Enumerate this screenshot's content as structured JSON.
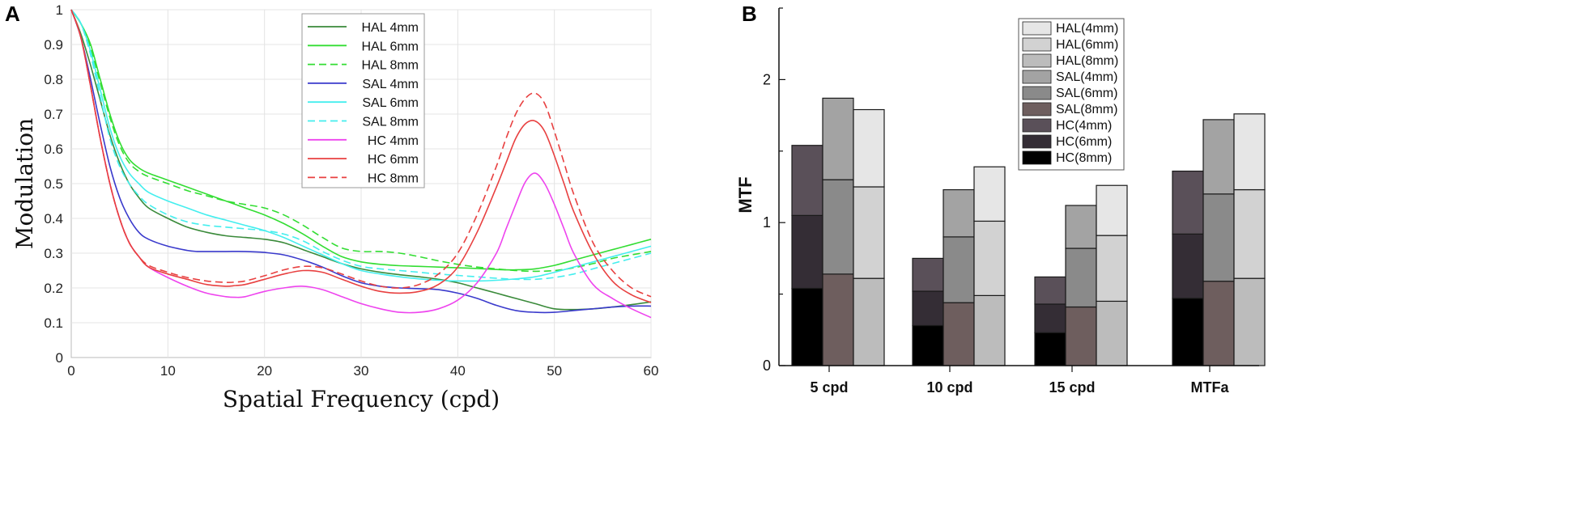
{
  "panel_labels": {
    "a": "A",
    "b": "B"
  },
  "chart_data": [
    {
      "id": "A",
      "type": "line",
      "xlabel": "Spatial Frequency (cpd)",
      "ylabel": "Modulation",
      "xlim": [
        0,
        60
      ],
      "ylim": [
        0,
        1
      ],
      "xticks": [
        0,
        10,
        20,
        30,
        40,
        50,
        60
      ],
      "yticks": [
        0,
        0.1,
        0.2,
        0.3,
        0.4,
        0.5,
        0.6,
        0.7,
        0.8,
        0.9,
        1
      ],
      "grid": true,
      "legend_position": "top-center",
      "series": [
        {
          "name": "HAL 4mm",
          "color": "#3a8a3a",
          "dash": "solid",
          "x": [
            0,
            1,
            2,
            3,
            4,
            5,
            6,
            7,
            8,
            10,
            12,
            14,
            16,
            18,
            20,
            22,
            24,
            26,
            28,
            30,
            32,
            34,
            36,
            38,
            40,
            42,
            44,
            46,
            48,
            50,
            52,
            54,
            56,
            58,
            60
          ],
          "y": [
            1,
            0.93,
            0.84,
            0.74,
            0.64,
            0.56,
            0.5,
            0.46,
            0.43,
            0.4,
            0.375,
            0.36,
            0.35,
            0.345,
            0.34,
            0.33,
            0.31,
            0.29,
            0.27,
            0.255,
            0.245,
            0.238,
            0.232,
            0.225,
            0.215,
            0.2,
            0.185,
            0.17,
            0.155,
            0.14,
            0.138,
            0.14,
            0.145,
            0.152,
            0.16
          ]
        },
        {
          "name": "HAL 6mm",
          "color": "#33dd33",
          "dash": "solid",
          "x": [
            0,
            1,
            2,
            3,
            4,
            5,
            6,
            7,
            8,
            10,
            12,
            14,
            16,
            18,
            20,
            22,
            24,
            26,
            28,
            30,
            32,
            34,
            36,
            38,
            40,
            42,
            44,
            46,
            48,
            50,
            52,
            54,
            56,
            58,
            60
          ],
          "y": [
            1,
            0.96,
            0.9,
            0.8,
            0.7,
            0.62,
            0.57,
            0.545,
            0.53,
            0.51,
            0.49,
            0.47,
            0.45,
            0.43,
            0.41,
            0.385,
            0.355,
            0.32,
            0.29,
            0.275,
            0.268,
            0.264,
            0.262,
            0.26,
            0.258,
            0.256,
            0.253,
            0.252,
            0.255,
            0.265,
            0.28,
            0.295,
            0.31,
            0.325,
            0.34
          ]
        },
        {
          "name": "HAL 8mm",
          "color": "#33dd33",
          "dash": "dashed",
          "x": [
            0,
            1,
            2,
            3,
            4,
            5,
            6,
            7,
            8,
            10,
            12,
            14,
            16,
            18,
            20,
            22,
            24,
            26,
            28,
            30,
            32,
            34,
            36,
            38,
            40,
            42,
            44,
            46,
            48,
            50,
            52,
            54,
            56,
            58,
            60
          ],
          "y": [
            1,
            0.96,
            0.89,
            0.79,
            0.69,
            0.61,
            0.56,
            0.535,
            0.52,
            0.5,
            0.48,
            0.465,
            0.45,
            0.44,
            0.43,
            0.41,
            0.38,
            0.345,
            0.315,
            0.305,
            0.305,
            0.3,
            0.29,
            0.278,
            0.268,
            0.26,
            0.255,
            0.25,
            0.248,
            0.25,
            0.258,
            0.27,
            0.285,
            0.295,
            0.305
          ]
        },
        {
          "name": "SAL 4mm",
          "color": "#3a3acc",
          "dash": "solid",
          "x": [
            0,
            1,
            2,
            3,
            4,
            5,
            6,
            7,
            8,
            10,
            12,
            13,
            14,
            16,
            18,
            20,
            22,
            24,
            26,
            28,
            30,
            32,
            34,
            36,
            38,
            40,
            42,
            44,
            46,
            48,
            50,
            52,
            54,
            56,
            58,
            60
          ],
          "y": [
            1,
            0.92,
            0.8,
            0.67,
            0.55,
            0.46,
            0.4,
            0.36,
            0.34,
            0.32,
            0.308,
            0.305,
            0.305,
            0.305,
            0.305,
            0.302,
            0.295,
            0.28,
            0.26,
            0.235,
            0.215,
            0.205,
            0.2,
            0.198,
            0.195,
            0.185,
            0.17,
            0.15,
            0.135,
            0.13,
            0.13,
            0.135,
            0.14,
            0.145,
            0.148,
            0.148
          ]
        },
        {
          "name": "SAL 6mm",
          "color": "#44eeee",
          "dash": "solid",
          "x": [
            0,
            1,
            2,
            3,
            4,
            5,
            6,
            7,
            8,
            10,
            12,
            14,
            16,
            18,
            20,
            22,
            24,
            26,
            28,
            30,
            32,
            34,
            36,
            38,
            40,
            42,
            44,
            46,
            48,
            50,
            52,
            54,
            56,
            58,
            60
          ],
          "y": [
            1,
            0.96,
            0.88,
            0.77,
            0.66,
            0.58,
            0.53,
            0.5,
            0.475,
            0.45,
            0.43,
            0.41,
            0.395,
            0.38,
            0.365,
            0.345,
            0.32,
            0.295,
            0.27,
            0.25,
            0.24,
            0.232,
            0.226,
            0.222,
            0.22,
            0.22,
            0.222,
            0.226,
            0.232,
            0.245,
            0.26,
            0.275,
            0.29,
            0.305,
            0.32
          ]
        },
        {
          "name": "SAL 8mm",
          "color": "#44eeee",
          "dash": "dashed",
          "x": [
            0,
            1,
            2,
            3,
            4,
            5,
            6,
            7,
            8,
            10,
            12,
            14,
            16,
            18,
            20,
            22,
            24,
            26,
            28,
            30,
            32,
            34,
            36,
            38,
            40,
            42,
            44,
            46,
            48,
            50,
            52,
            54,
            56,
            58,
            60
          ],
          "y": [
            1,
            0.96,
            0.87,
            0.75,
            0.63,
            0.55,
            0.5,
            0.465,
            0.44,
            0.41,
            0.39,
            0.38,
            0.375,
            0.37,
            0.365,
            0.355,
            0.335,
            0.305,
            0.28,
            0.262,
            0.255,
            0.25,
            0.245,
            0.24,
            0.236,
            0.232,
            0.228,
            0.225,
            0.225,
            0.23,
            0.24,
            0.255,
            0.27,
            0.285,
            0.3
          ]
        },
        {
          "name": "HC 4mm",
          "color": "#ee44ee",
          "dash": "solid",
          "x": [
            0,
            1,
            2,
            3,
            4,
            5,
            6,
            7,
            8,
            10,
            12,
            14,
            16,
            17,
            18,
            20,
            22,
            24,
            26,
            28,
            30,
            32,
            34,
            36,
            38,
            40,
            42,
            44,
            45,
            46,
            47,
            48,
            49,
            50,
            51,
            52,
            54,
            56,
            58,
            60
          ],
          "y": [
            1,
            0.92,
            0.78,
            0.63,
            0.5,
            0.4,
            0.33,
            0.29,
            0.26,
            0.23,
            0.205,
            0.185,
            0.175,
            0.173,
            0.175,
            0.19,
            0.2,
            0.205,
            0.195,
            0.175,
            0.155,
            0.14,
            0.13,
            0.13,
            0.14,
            0.165,
            0.215,
            0.3,
            0.37,
            0.44,
            0.505,
            0.53,
            0.5,
            0.44,
            0.37,
            0.3,
            0.21,
            0.17,
            0.14,
            0.115
          ]
        },
        {
          "name": "HC 6mm",
          "color": "#e84040",
          "dash": "solid",
          "x": [
            0,
            1,
            2,
            3,
            4,
            5,
            6,
            7,
            8,
            10,
            12,
            14,
            16,
            17,
            18,
            20,
            22,
            24,
            26,
            28,
            30,
            32,
            34,
            36,
            38,
            40,
            42,
            44,
            45,
            46,
            47,
            48,
            49,
            50,
            51,
            52,
            54,
            56,
            58,
            60
          ],
          "y": [
            1,
            0.92,
            0.78,
            0.63,
            0.5,
            0.4,
            0.33,
            0.29,
            0.26,
            0.24,
            0.225,
            0.21,
            0.205,
            0.207,
            0.21,
            0.225,
            0.24,
            0.25,
            0.245,
            0.225,
            0.205,
            0.19,
            0.185,
            0.19,
            0.21,
            0.26,
            0.36,
            0.49,
            0.56,
            0.63,
            0.672,
            0.68,
            0.65,
            0.58,
            0.5,
            0.42,
            0.3,
            0.22,
            0.18,
            0.158
          ]
        },
        {
          "name": "HC 8mm",
          "color": "#e84040",
          "dash": "dashed",
          "x": [
            0,
            1,
            2,
            3,
            4,
            5,
            6,
            7,
            8,
            10,
            12,
            14,
            16,
            17,
            18,
            20,
            22,
            24,
            26,
            28,
            30,
            32,
            34,
            36,
            38,
            40,
            42,
            44,
            45,
            46,
            47,
            48,
            49,
            50,
            51,
            52,
            54,
            56,
            58,
            60
          ],
          "y": [
            1,
            0.92,
            0.78,
            0.63,
            0.5,
            0.4,
            0.33,
            0.29,
            0.265,
            0.245,
            0.23,
            0.22,
            0.216,
            0.217,
            0.22,
            0.235,
            0.252,
            0.262,
            0.258,
            0.24,
            0.22,
            0.205,
            0.2,
            0.21,
            0.24,
            0.3,
            0.41,
            0.55,
            0.63,
            0.7,
            0.745,
            0.76,
            0.73,
            0.65,
            0.56,
            0.47,
            0.33,
            0.25,
            0.2,
            0.175
          ]
        }
      ]
    },
    {
      "id": "B",
      "type": "bar",
      "stacked": true,
      "ylabel": "MTF",
      "ylim": [
        0,
        2.5
      ],
      "yticks": [
        0,
        1,
        2
      ],
      "categories": [
        "5 cpd",
        "10 cpd",
        "15 cpd",
        "MTFa"
      ],
      "groups": [
        "HC",
        "SAL",
        "HAL"
      ],
      "legend_position": "top-center",
      "legend": [
        "HAL(4mm)",
        "HAL(6mm)",
        "HAL(8mm)",
        "SAL(4mm)",
        "SAL(6mm)",
        "SAL(8mm)",
        "HC(4mm)",
        "HC(6mm)",
        "HC(8mm)"
      ],
      "colors": {
        "HAL(4mm)": "#e6e6e6",
        "HAL(6mm)": "#d2d2d2",
        "HAL(8mm)": "#bcbcbc",
        "SAL(4mm)": "#a3a3a3",
        "SAL(6mm)": "#8a8a8a",
        "SAL(8mm)": "#6e5e5e",
        "HC(4mm)": "#5a5059",
        "HC(6mm)": "#342d35",
        "HC(8mm)": "#000000"
      },
      "stacks": [
        {
          "category": "5 cpd",
          "group": "HC",
          "segments": [
            {
              "name": "HC(8mm)",
              "value": 0.54
            },
            {
              "name": "HC(6mm)",
              "value": 0.51
            },
            {
              "name": "HC(4mm)",
              "value": 0.49
            }
          ]
        },
        {
          "category": "5 cpd",
          "group": "SAL",
          "segments": [
            {
              "name": "SAL(8mm)",
              "value": 0.64
            },
            {
              "name": "SAL(6mm)",
              "value": 0.66
            },
            {
              "name": "SAL(4mm)",
              "value": 0.57
            }
          ]
        },
        {
          "category": "5 cpd",
          "group": "HAL",
          "segments": [
            {
              "name": "HAL(8mm)",
              "value": 0.61
            },
            {
              "name": "HAL(6mm)",
              "value": 0.64
            },
            {
              "name": "HAL(4mm)",
              "value": 0.54
            }
          ]
        },
        {
          "category": "10 cpd",
          "group": "HC",
          "segments": [
            {
              "name": "HC(8mm)",
              "value": 0.28
            },
            {
              "name": "HC(6mm)",
              "value": 0.24
            },
            {
              "name": "HC(4mm)",
              "value": 0.23
            }
          ]
        },
        {
          "category": "10 cpd",
          "group": "SAL",
          "segments": [
            {
              "name": "SAL(8mm)",
              "value": 0.44
            },
            {
              "name": "SAL(6mm)",
              "value": 0.46
            },
            {
              "name": "SAL(4mm)",
              "value": 0.33
            }
          ]
        },
        {
          "category": "10 cpd",
          "group": "HAL",
          "segments": [
            {
              "name": "HAL(8mm)",
              "value": 0.49
            },
            {
              "name": "HAL(6mm)",
              "value": 0.52
            },
            {
              "name": "HAL(4mm)",
              "value": 0.38
            }
          ]
        },
        {
          "category": "15 cpd",
          "group": "HC",
          "segments": [
            {
              "name": "HC(8mm)",
              "value": 0.23
            },
            {
              "name": "HC(6mm)",
              "value": 0.2
            },
            {
              "name": "HC(4mm)",
              "value": 0.19
            }
          ]
        },
        {
          "category": "15 cpd",
          "group": "SAL",
          "segments": [
            {
              "name": "SAL(8mm)",
              "value": 0.41
            },
            {
              "name": "SAL(6mm)",
              "value": 0.41
            },
            {
              "name": "SAL(4mm)",
              "value": 0.3
            }
          ]
        },
        {
          "category": "15 cpd",
          "group": "HAL",
          "segments": [
            {
              "name": "HAL(8mm)",
              "value": 0.45
            },
            {
              "name": "HAL(6mm)",
              "value": 0.46
            },
            {
              "name": "HAL(4mm)",
              "value": 0.35
            }
          ]
        },
        {
          "category": "MTFa",
          "group": "HC",
          "segments": [
            {
              "name": "HC(8mm)",
              "value": 0.47
            },
            {
              "name": "HC(6mm)",
              "value": 0.45
            },
            {
              "name": "HC(4mm)",
              "value": 0.44
            }
          ]
        },
        {
          "category": "MTFa",
          "group": "SAL",
          "segments": [
            {
              "name": "SAL(8mm)",
              "value": 0.59
            },
            {
              "name": "SAL(6mm)",
              "value": 0.61
            },
            {
              "name": "SAL(4mm)",
              "value": 0.52
            }
          ]
        },
        {
          "category": "MTFa",
          "group": "HAL",
          "segments": [
            {
              "name": "HAL(8mm)",
              "value": 0.61
            },
            {
              "name": "HAL(6mm)",
              "value": 0.62
            },
            {
              "name": "HAL(4mm)",
              "value": 0.53
            }
          ]
        }
      ]
    }
  ]
}
